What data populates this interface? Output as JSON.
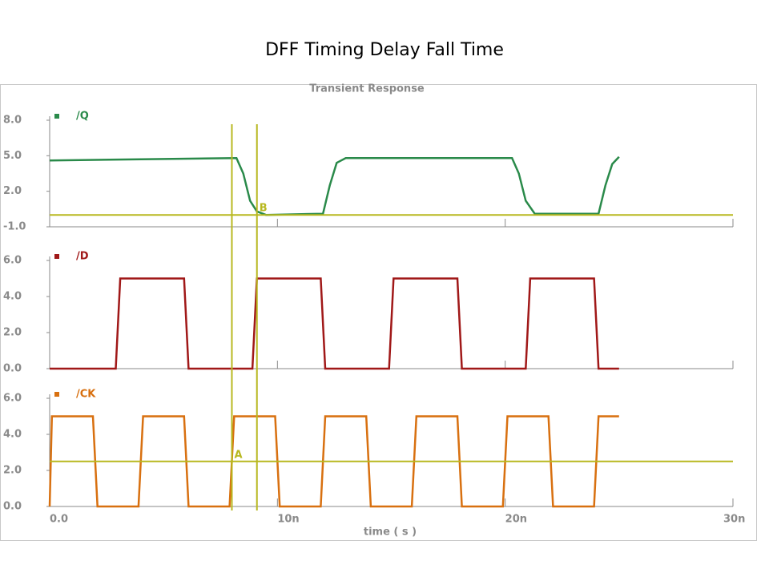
{
  "page_title": "DFF Timing Delay Fall Time",
  "chart_data": [
    {
      "type": "line",
      "title": "Transient Response",
      "x": [
        0,
        8.2,
        8.5,
        8.8,
        9.1,
        9.5,
        12,
        12.3,
        12.6,
        13,
        20.3,
        20.6,
        20.9,
        21.3,
        24.1,
        24.4,
        24.7,
        25
      ],
      "series": [
        {
          "name": "/Q",
          "color": "#2a8a4a",
          "values": [
            4.6,
            4.8,
            3.5,
            1.2,
            0.3,
            0,
            0.1,
            2.5,
            4.4,
            4.8,
            4.8,
            3.5,
            1.2,
            0.1,
            0.1,
            2.5,
            4.3,
            4.9
          ]
        }
      ],
      "xlim": [
        0,
        30
      ],
      "ylim": [
        -1,
        8
      ],
      "yticks": [
        {
          "value": 8,
          "label": "8.0"
        },
        {
          "value": 5,
          "label": "5.0"
        },
        {
          "value": 2,
          "label": "2.0"
        },
        {
          "value": -1,
          "label": "-1.0"
        }
      ],
      "cursor": {
        "label": "B",
        "x": 9.1,
        "y": 0
      }
    },
    {
      "type": "line",
      "x": [
        0,
        2.9,
        3.1,
        5.9,
        6.1,
        8.9,
        9.1,
        11.9,
        12.1,
        14.9,
        15.1,
        17.9,
        18.1,
        20.9,
        21.1,
        23.9,
        24.1,
        25
      ],
      "series": [
        {
          "name": "/D",
          "color": "#a01818",
          "values": [
            0,
            0,
            5,
            5,
            0,
            0,
            5,
            5,
            0,
            0,
            5,
            5,
            0,
            0,
            5,
            5,
            0,
            0
          ]
        }
      ],
      "xlim": [
        0,
        30
      ],
      "ylim": [
        0,
        6
      ],
      "yticks": [
        {
          "value": 6,
          "label": "6.0"
        },
        {
          "value": 4,
          "label": "4.0"
        },
        {
          "value": 2,
          "label": "2.0"
        },
        {
          "value": 0,
          "label": "0.0"
        }
      ]
    },
    {
      "type": "line",
      "x": [
        0,
        0.1,
        1.9,
        2.1,
        3.9,
        4.1,
        5.9,
        6.1,
        7.9,
        8.1,
        9.9,
        10.1,
        11.9,
        12.1,
        13.9,
        14.1,
        15.9,
        16.1,
        17.9,
        18.1,
        19.9,
        20.1,
        21.9,
        22.1,
        23.9,
        24.1,
        25
      ],
      "series": [
        {
          "name": "/CK",
          "color": "#d87010",
          "values": [
            0,
            5,
            5,
            0,
            0,
            5,
            5,
            0,
            0,
            5,
            5,
            0,
            0,
            5,
            5,
            0,
            0,
            5,
            5,
            0,
            0,
            5,
            5,
            0,
            0,
            5,
            5
          ]
        }
      ],
      "xlim": [
        0,
        30
      ],
      "ylim": [
        0,
        6
      ],
      "yticks": [
        {
          "value": 6,
          "label": "6.0"
        },
        {
          "value": 4,
          "label": "4.0"
        },
        {
          "value": 2,
          "label": "2.0"
        },
        {
          "value": 0,
          "label": "0.0"
        }
      ],
      "xticks": [
        {
          "value": 0,
          "label": "0.0"
        },
        {
          "value": 10,
          "label": "10n"
        },
        {
          "value": 20,
          "label": "20n"
        },
        {
          "value": 30,
          "label": "30n"
        }
      ],
      "xlabel": "time ( s )",
      "cursor": {
        "label": "A",
        "x": 8.0,
        "y": 2.5
      }
    }
  ]
}
